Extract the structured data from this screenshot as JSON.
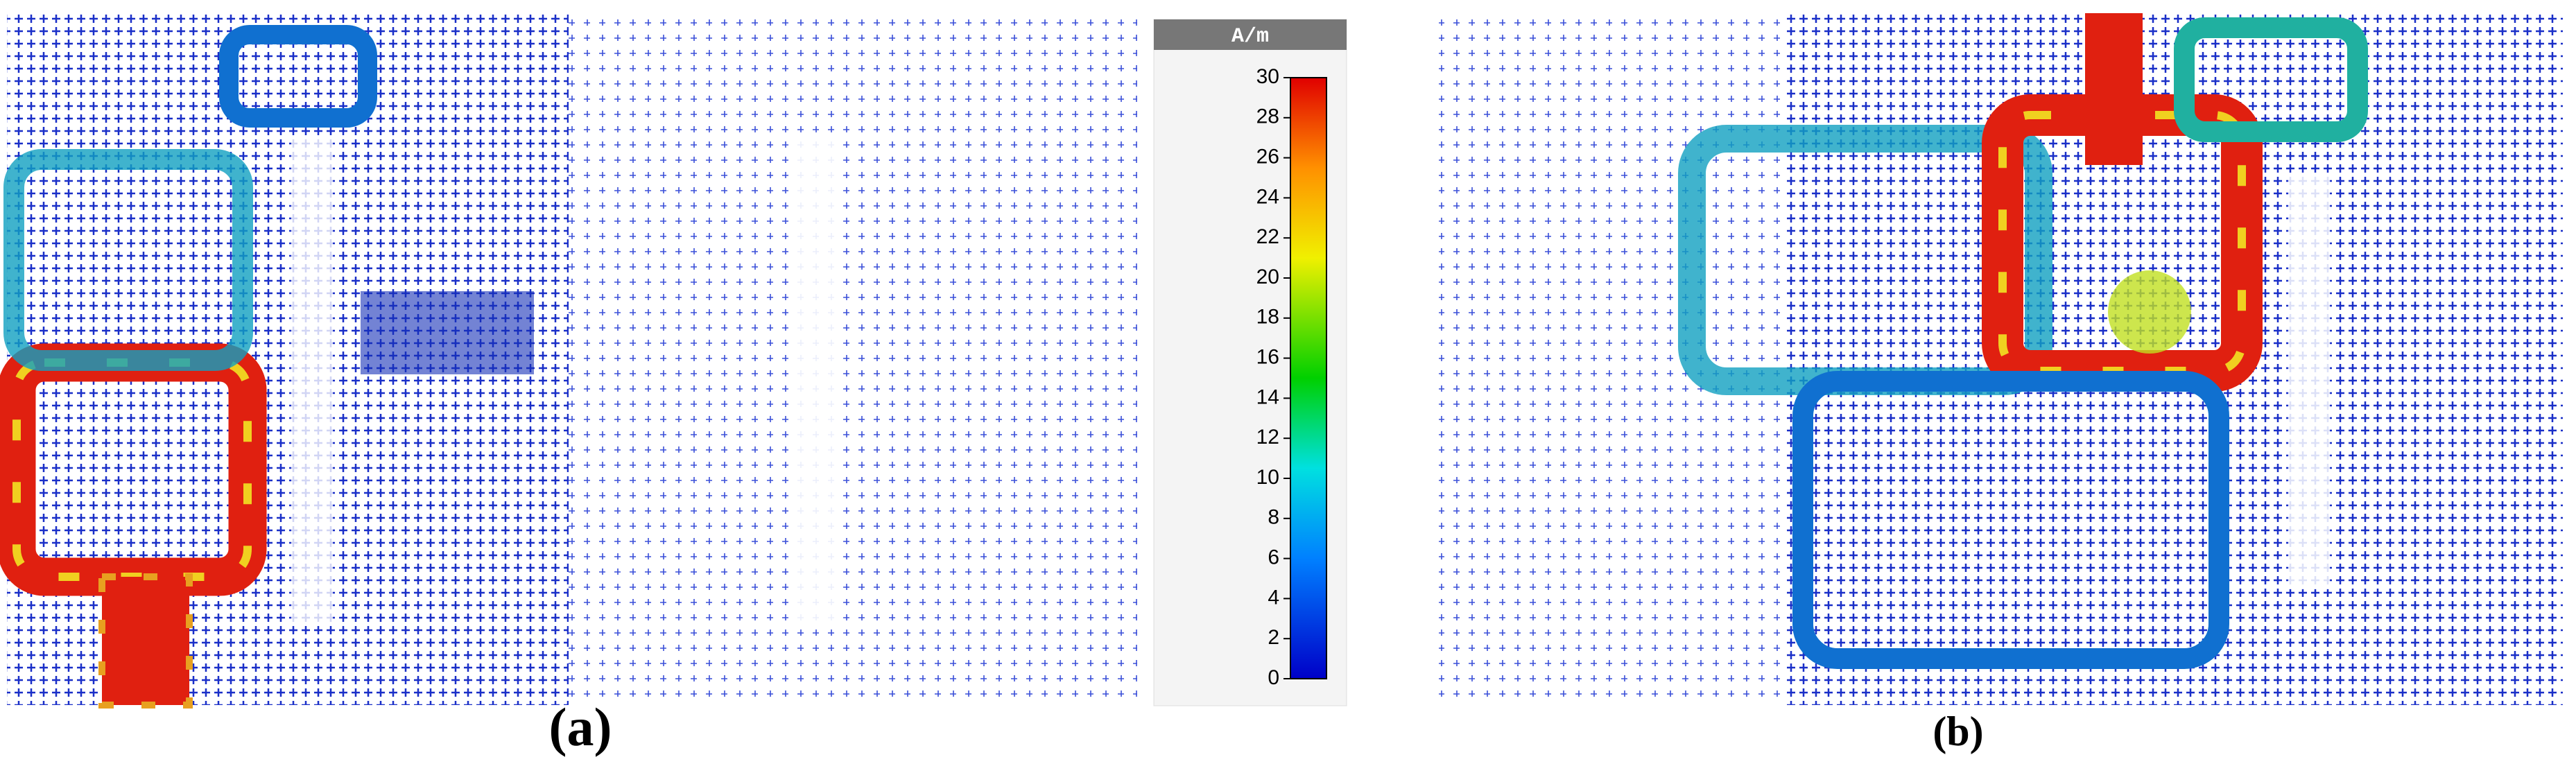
{
  "panels": [
    {
      "label": "(a)"
    },
    {
      "label": "(b)"
    }
  ],
  "colorbar": {
    "unit": "A/m",
    "lim": [
      0,
      30
    ],
    "ticks": [
      0,
      2,
      4,
      6,
      8,
      10,
      12,
      14,
      16,
      18,
      20,
      22,
      24,
      26,
      28,
      30
    ]
  }
}
